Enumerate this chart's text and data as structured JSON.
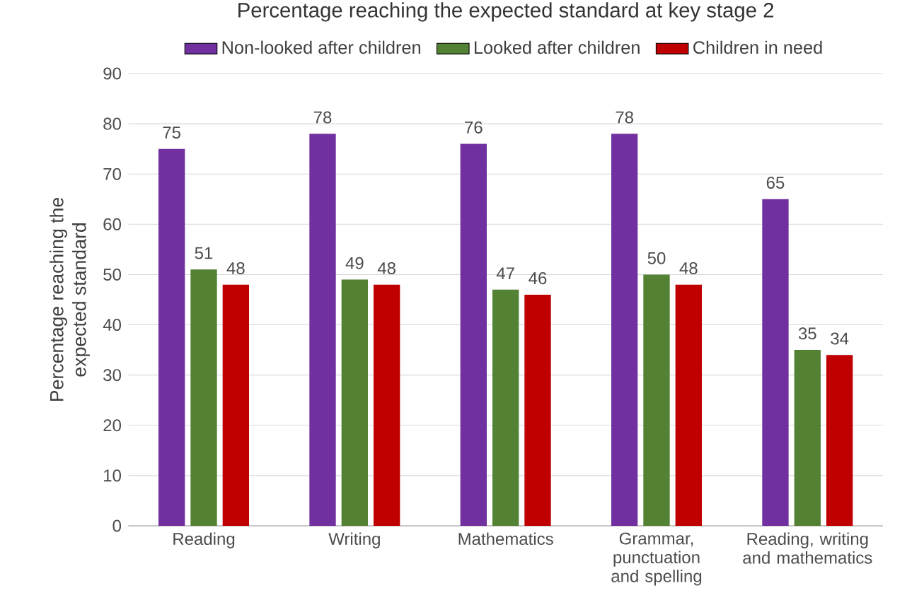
{
  "chart_data": {
    "type": "bar",
    "title": "Percentage reaching the expected standard at key stage 2",
    "ylabel": "Percentage reaching the expected standard",
    "categories": [
      "Reading",
      "Writing",
      "Mathematics",
      "Grammar, punctuation and spelling",
      "Reading, writing and mathematics"
    ],
    "series": [
      {
        "name": "Non-looked after children",
        "color": "#7030a0",
        "values": [
          75,
          78,
          76,
          78,
          65
        ]
      },
      {
        "name": "Looked after children",
        "color": "#548235",
        "values": [
          51,
          49,
          47,
          50,
          35
        ]
      },
      {
        "name": "Children in need",
        "color": "#c00000",
        "values": [
          48,
          48,
          46,
          48,
          34
        ]
      }
    ],
    "ylim": [
      0,
      90
    ],
    "yticks": [
      0,
      10,
      20,
      30,
      40,
      50,
      60,
      70,
      80,
      90
    ],
    "grid": "y",
    "legend": "top",
    "data_labels": true
  }
}
